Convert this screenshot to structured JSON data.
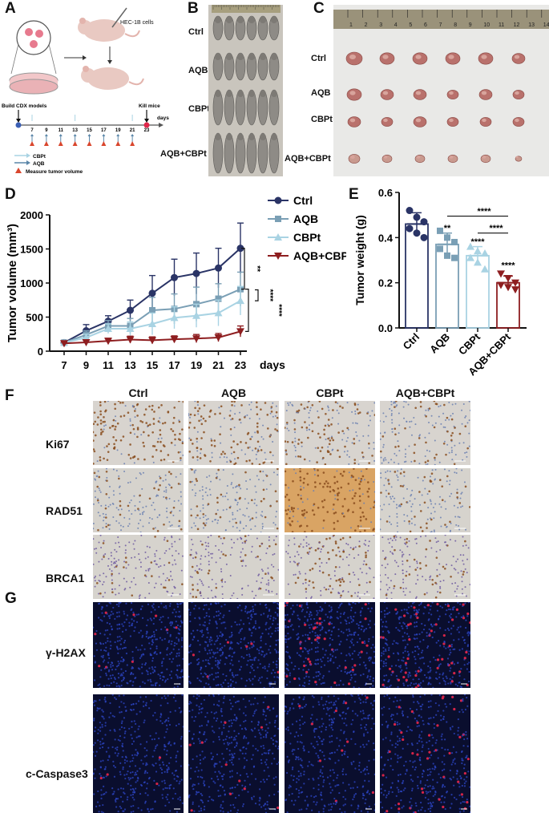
{
  "panels": {
    "a": "A",
    "b": "B",
    "c": "C",
    "d": "D",
    "e": "E",
    "f": "F",
    "g": "G"
  },
  "panel_a": {
    "cells_label": "HEC-1B cells",
    "build_label": "Build CDX models",
    "kill_label": "Kill mice",
    "days_label": "days",
    "days": [
      "7",
      "9",
      "11",
      "13",
      "15",
      "17",
      "19",
      "21",
      "23"
    ],
    "legend": {
      "cbpt": "CBPt",
      "aqb": "AQB",
      "measure": "Measure tumor volume"
    }
  },
  "groups": [
    "Ctrl",
    "AQB",
    "CBPt",
    "AQB+CBPt"
  ],
  "markers_ihc": [
    "Ki67",
    "RAD51",
    "BRCA1"
  ],
  "markers_if": [
    "γ-H2AX",
    "c-Caspase3"
  ],
  "colors": {
    "ctrl": "#2a3466",
    "aqb": "#7a9fb5",
    "cbpt": "#a9d3e3",
    "combo": "#8e1e20",
    "ihc_brown": "#a9692c",
    "ihc_blue": "#5a6fa0",
    "if_blue": "#2d47c8",
    "if_red": "#e0264a"
  },
  "chart_data": [
    {
      "type": "line",
      "ylabel": "Tumor volume (mm³)",
      "xlabel": "days",
      "x": [
        7,
        9,
        11,
        13,
        15,
        17,
        19,
        21,
        23
      ],
      "ylim": [
        0,
        2000
      ],
      "yticks": [
        "0",
        "500",
        "1000",
        "1500",
        "2000"
      ],
      "legend_position": "top-right",
      "series": [
        {
          "name": "Ctrl",
          "values": [
            125,
            300,
            440,
            600,
            850,
            1080,
            1140,
            1220,
            1510
          ],
          "err": [
            20,
            90,
            80,
            150,
            260,
            270,
            300,
            290,
            370
          ],
          "marker": "circle"
        },
        {
          "name": "AQB",
          "values": [
            125,
            240,
            370,
            370,
            600,
            620,
            690,
            770,
            910
          ],
          "err": [
            20,
            60,
            80,
            110,
            190,
            220,
            250,
            220,
            250
          ],
          "marker": "square"
        },
        {
          "name": "CBPt",
          "values": [
            125,
            200,
            330,
            330,
            400,
            490,
            520,
            560,
            740
          ],
          "err": [
            20,
            50,
            70,
            100,
            160,
            160,
            170,
            190,
            210
          ],
          "marker": "triangle-up"
        },
        {
          "name": "AQB+CBPt",
          "values": [
            115,
            130,
            150,
            170,
            160,
            175,
            185,
            200,
            290
          ],
          "err": [
            20,
            30,
            40,
            50,
            50,
            50,
            60,
            60,
            80
          ],
          "marker": "triangle-down"
        }
      ],
      "significance": [
        "**",
        "****",
        "****"
      ]
    },
    {
      "type": "bar",
      "ylabel": "Tumor weight (g)",
      "categories": [
        "Ctrl",
        "AQB",
        "CBPt",
        "AQB+CBPt"
      ],
      "values": [
        0.46,
        0.37,
        0.32,
        0.2
      ],
      "err": [
        0.05,
        0.05,
        0.04,
        0.03
      ],
      "points": [
        [
          0.52,
          0.49,
          0.47,
          0.44,
          0.42,
          0.4
        ],
        [
          0.43,
          0.4,
          0.38,
          0.35,
          0.32,
          0.31
        ],
        [
          0.36,
          0.34,
          0.33,
          0.31,
          0.29,
          0.26
        ],
        [
          0.24,
          0.22,
          0.2,
          0.19,
          0.18,
          0.17
        ]
      ],
      "ylim": [
        0,
        0.6
      ],
      "yticks": [
        "0.0",
        "0.2",
        "0.4",
        "0.6"
      ],
      "significance": {
        "aqb": "**",
        "cbpt": "****",
        "combo": "****",
        "brackets": [
          "****",
          "****"
        ]
      }
    }
  ]
}
